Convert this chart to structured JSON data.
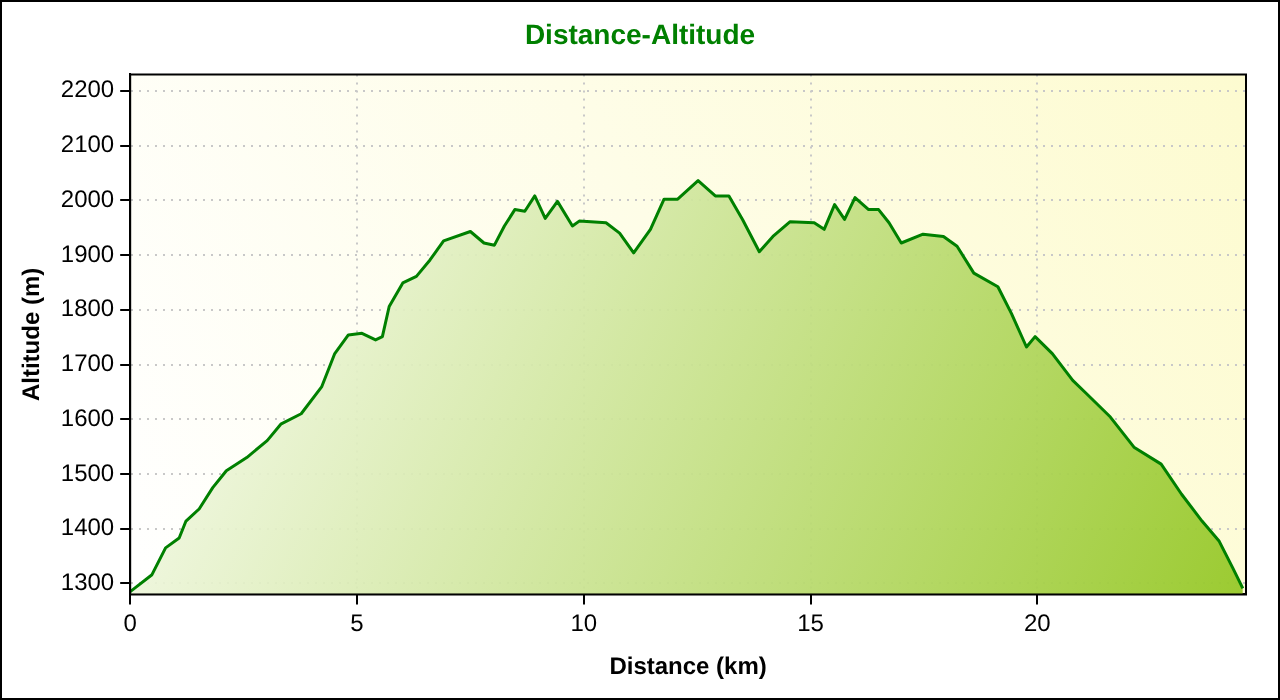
{
  "chart_data": {
    "type": "area",
    "title": "Distance-Altitude",
    "xlabel": "Distance (km)",
    "ylabel": "Altitude (m)",
    "x": [
      0,
      0.48,
      0.78,
      1.08,
      1.23,
      1.52,
      1.82,
      2.12,
      2.57,
      3.02,
      3.32,
      3.77,
      4.22,
      4.51,
      4.81,
      5.11,
      5.41,
      5.56,
      5.71,
      6.01,
      6.31,
      6.61,
      6.91,
      7.5,
      7.8,
      8.03,
      8.25,
      8.48,
      8.7,
      8.92,
      9.15,
      9.42,
      9.75,
      9.9,
      10.49,
      10.79,
      11.1,
      11.47,
      11.77,
      12.07,
      12.52,
      12.9,
      13.2,
      13.5,
      13.87,
      14.17,
      14.55,
      15.08,
      15.3,
      15.53,
      15.75,
      15.98,
      16.28,
      16.5,
      16.73,
      17,
      17.48,
      17.93,
      18.23,
      18.6,
      19.13,
      19.43,
      19.76,
      19.95,
      20.33,
      20.78,
      21.08,
      21.61,
      22.13,
      22.73,
      23.18,
      23.63,
      24.01,
      24.31,
      24.53
    ],
    "series": [
      {
        "color": "#008000",
        "values": [
          1285,
          1316,
          1365,
          1383,
          1414,
          1436,
          1475,
          1506,
          1530,
          1561,
          1591,
          1610,
          1659,
          1720,
          1754,
          1757,
          1745,
          1751,
          1806,
          1849,
          1861,
          1891,
          1926,
          1943,
          1922,
          1918,
          1953,
          1983,
          1980,
          2008,
          1967,
          1998,
          1953,
          1962,
          1959,
          1940,
          1904,
          1947,
          2002,
          2002,
          2036,
          2008,
          2008,
          1965,
          1906,
          1934,
          1961,
          1959,
          1947,
          1992,
          1965,
          2005,
          1983,
          1983,
          1959,
          1922,
          1938,
          1934,
          1916,
          1867,
          1842,
          1793,
          1732,
          1751,
          1720,
          1671,
          1647,
          1604,
          1549,
          1518,
          1463,
          1414,
          1377,
          1328,
          1291
        ]
      }
    ],
    "xlim": [
      0,
      24.6
    ],
    "xticks": [
      0,
      5,
      10,
      15,
      20
    ],
    "ylim": [
      1280,
      2230
    ],
    "yticks": [
      1300,
      1400,
      1500,
      1600,
      1700,
      1800,
      1900,
      2000,
      2100,
      2200
    ],
    "grid": true,
    "legend": false
  }
}
